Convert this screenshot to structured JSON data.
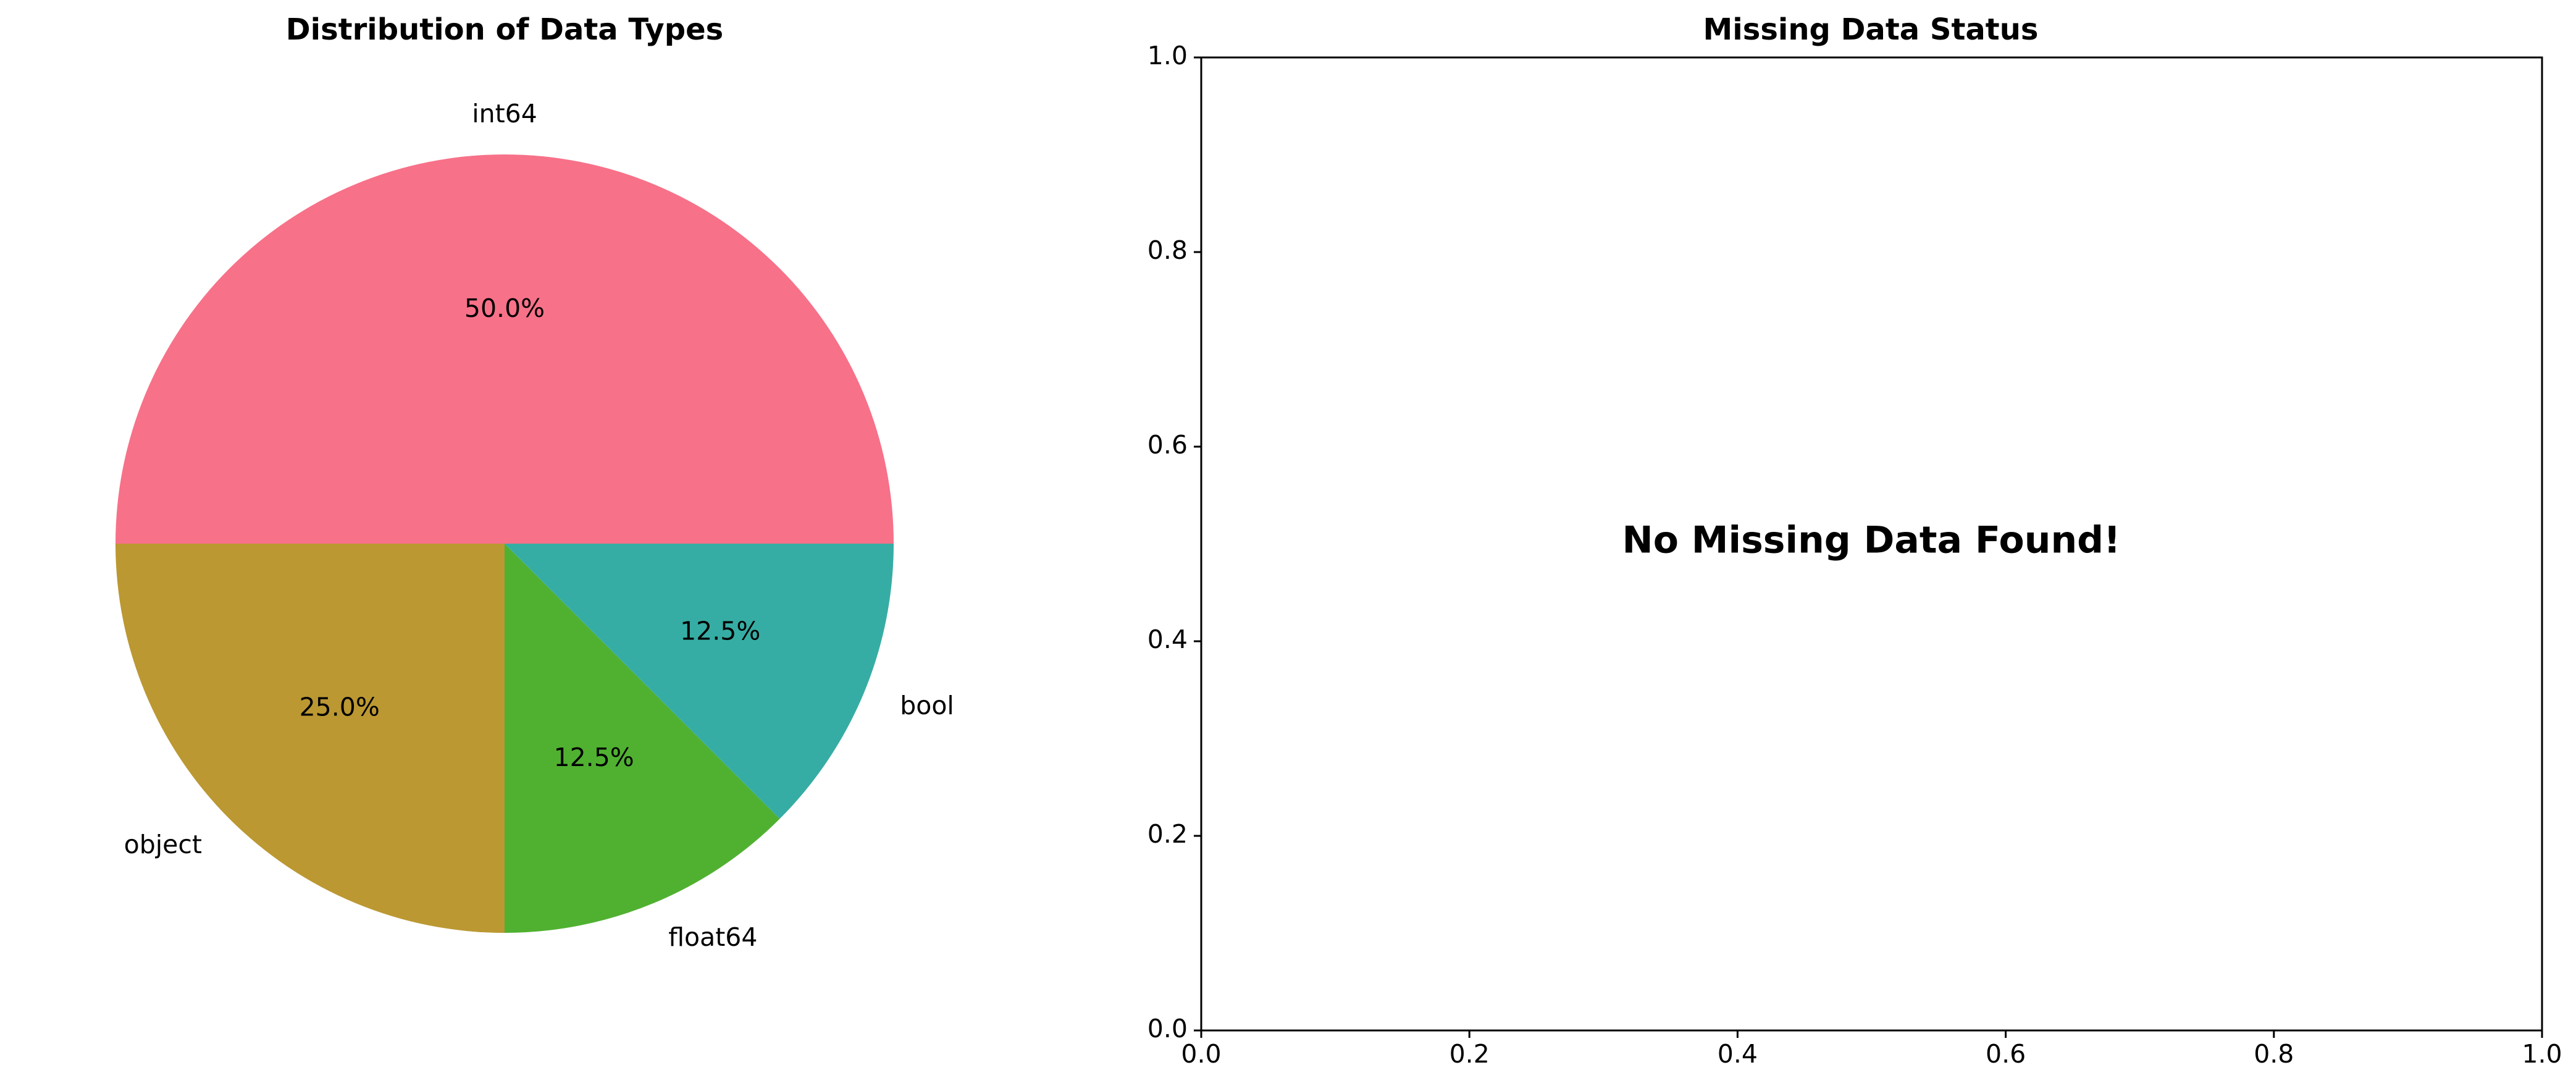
{
  "chart_data": [
    {
      "type": "pie",
      "title": "Distribution of Data Types",
      "categories": [
        "int64",
        "object",
        "float64",
        "bool"
      ],
      "values": [
        50.0,
        25.0,
        12.5,
        12.5
      ],
      "value_labels": [
        "50.0%",
        "25.0%",
        "12.5%",
        "12.5%"
      ],
      "colors": [
        "#f77189",
        "#bb9832",
        "#50b131",
        "#36ada4"
      ],
      "start_angle": 0,
      "direction": "counterclockwise"
    },
    {
      "type": "scatter",
      "title": "Missing Data Status",
      "annotation": "No Missing Data Found!",
      "xlim": [
        0.0,
        1.0
      ],
      "ylim": [
        0.0,
        1.0
      ],
      "xticks": [
        "0.0",
        "0.2",
        "0.4",
        "0.6",
        "0.8",
        "1.0"
      ],
      "yticks": [
        "0.0",
        "0.2",
        "0.4",
        "0.6",
        "0.8",
        "1.0"
      ],
      "annotation_position": [
        0.5,
        0.5
      ],
      "series": [],
      "grid": false
    }
  ]
}
